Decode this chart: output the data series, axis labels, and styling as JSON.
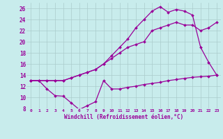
{
  "xlabel": "Windchill (Refroidissement éolien,°C)",
  "xlim": [
    -0.5,
    23.5
  ],
  "ylim": [
    8,
    27
  ],
  "xticks": [
    0,
    1,
    2,
    3,
    4,
    5,
    6,
    7,
    8,
    9,
    10,
    11,
    12,
    13,
    14,
    15,
    16,
    17,
    18,
    19,
    20,
    21,
    22,
    23
  ],
  "yticks": [
    8,
    10,
    12,
    14,
    16,
    18,
    20,
    22,
    24,
    26
  ],
  "bg_color": "#c8ecec",
  "line_color": "#990099",
  "grid_color": "#aacccc",
  "series1_x": [
    0,
    1,
    2,
    3,
    4,
    5,
    6,
    7,
    8,
    9,
    10,
    11,
    12,
    13,
    14,
    15,
    16,
    17,
    18,
    19,
    20,
    21,
    22,
    23
  ],
  "series1_y": [
    13,
    13,
    11.5,
    10.3,
    10.2,
    9.0,
    7.8,
    8.5,
    9.2,
    13.0,
    11.5,
    11.5,
    11.8,
    12.0,
    12.3,
    12.5,
    12.7,
    13.0,
    13.2,
    13.4,
    13.6,
    13.7,
    13.8,
    14.0
  ],
  "series2_x": [
    0,
    1,
    2,
    3,
    4,
    5,
    6,
    7,
    8,
    9,
    10,
    11,
    12,
    13,
    14,
    15,
    16,
    17,
    18,
    19,
    20,
    21,
    22,
    23
  ],
  "series2_y": [
    13,
    13,
    13,
    13,
    13,
    13.5,
    14,
    14.5,
    15,
    16,
    17,
    18,
    19,
    19.5,
    20,
    22,
    22.5,
    23,
    23.5,
    23,
    23,
    22,
    22.5,
    23.5
  ],
  "series3_x": [
    0,
    1,
    2,
    3,
    4,
    5,
    6,
    7,
    8,
    9,
    10,
    11,
    12,
    13,
    14,
    15,
    16,
    17,
    18,
    19,
    20,
    21,
    22,
    23
  ],
  "series3_y": [
    13,
    13,
    13,
    13,
    13,
    13.5,
    14,
    14.5,
    15,
    16,
    17.5,
    19,
    20.5,
    22.5,
    24,
    25.5,
    26.3,
    25.3,
    25.8,
    25.5,
    24.8,
    19.0,
    16.3,
    14.0
  ]
}
